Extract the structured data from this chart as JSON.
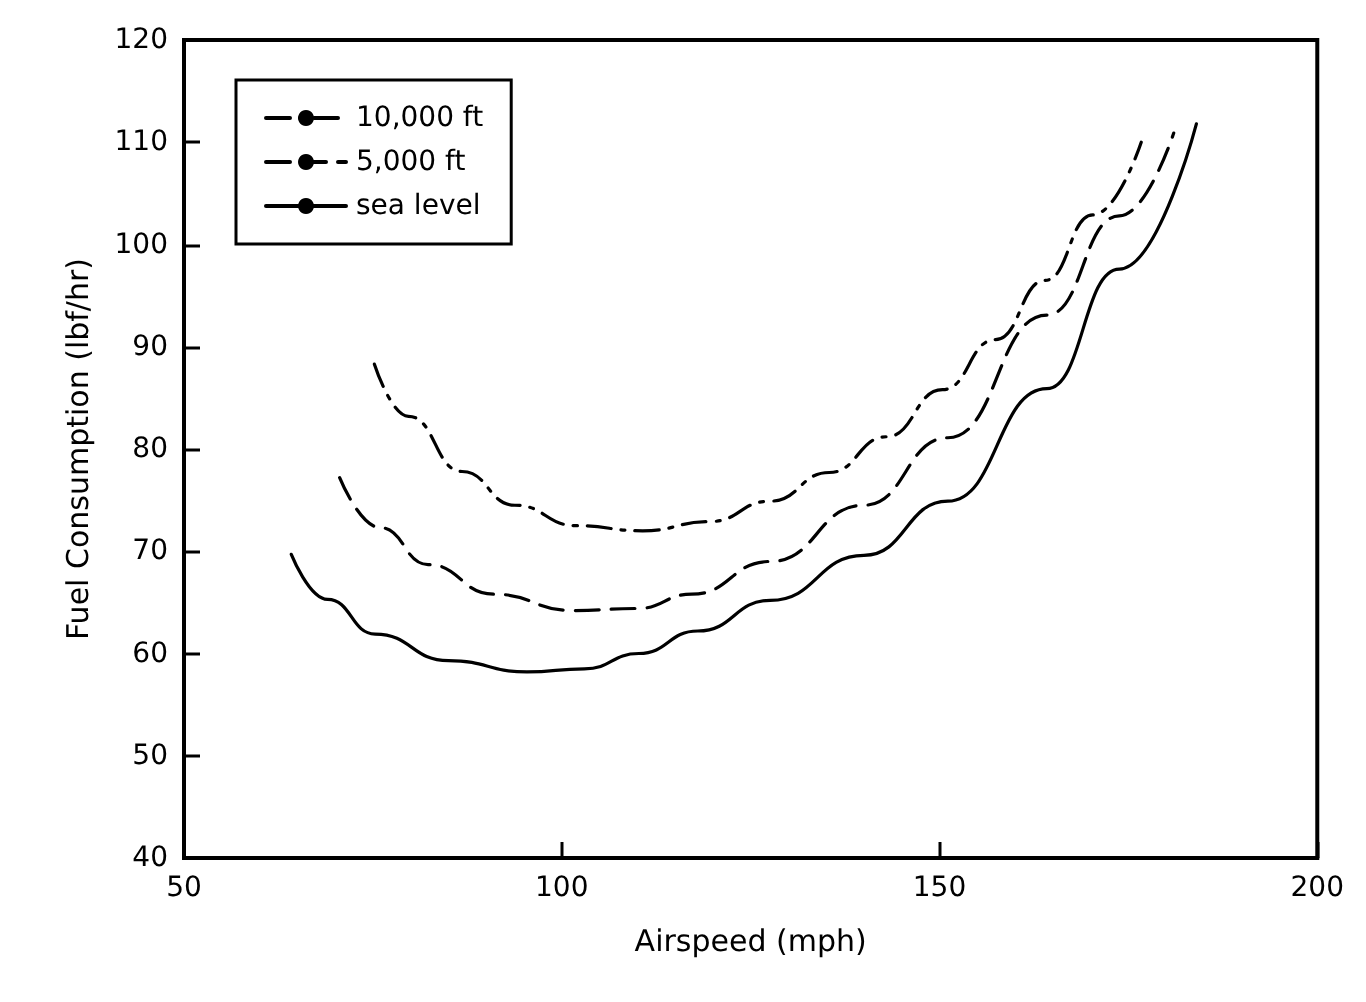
{
  "chart_data": {
    "type": "line",
    "xlabel": "Airspeed (mph)",
    "ylabel": "Fuel Consumption (lbf/hr)",
    "xlim": [
      50,
      200
    ],
    "xticks": [
      50,
      100,
      150,
      200
    ],
    "ylim": [
      40,
      120
    ],
    "yticks": [
      40,
      50,
      60,
      70,
      80,
      90,
      100,
      110,
      120
    ],
    "grid": false,
    "legend": "top left",
    "marker": "none",
    "series": [
      {
        "name": "10,000 ft",
        "color": "#000000",
        "line_style": "dashdot",
        "x": [
          75.2,
          79.7,
          86.8,
          93.8,
          101.9,
          110.7,
          119.6,
          127.6,
          135.4,
          143,
          150.4,
          157.4,
          164,
          170.3,
          176.7
        ],
        "values": [
          88.3,
          83.2,
          77.8,
          74.5,
          72.5,
          72.0,
          72.9,
          74.9,
          77.7,
          81.2,
          85.8,
          90.7,
          96.5,
          102.9,
          110.0
        ]
      },
      {
        "name": "5,000 ft",
        "color": "#000000",
        "line_style": "dashed",
        "x": [
          70.6,
          76,
          82.3,
          91,
          101.5,
          110,
          117.2,
          127.6,
          140,
          151.1,
          164.2,
          173.8,
          181
        ],
        "values": [
          77.2,
          72.3,
          68.7,
          65.8,
          64.2,
          64.4,
          65.8,
          69.0,
          74.5,
          81.1,
          93.1,
          102.8,
          110.9
        ]
      },
      {
        "name": "sea level",
        "color": "#000000",
        "line_style": "solid",
        "x": [
          64.2,
          69,
          75.3,
          85,
          95.4,
          103,
          110.2,
          118,
          127.6,
          140,
          151.1,
          164.2,
          173.8,
          184
        ],
        "values": [
          69.7,
          65.3,
          61.9,
          59.3,
          58.2,
          58.5,
          60.0,
          62.2,
          65.2,
          69.6,
          74.9,
          85.9,
          97.6,
          111.8
        ]
      }
    ]
  }
}
